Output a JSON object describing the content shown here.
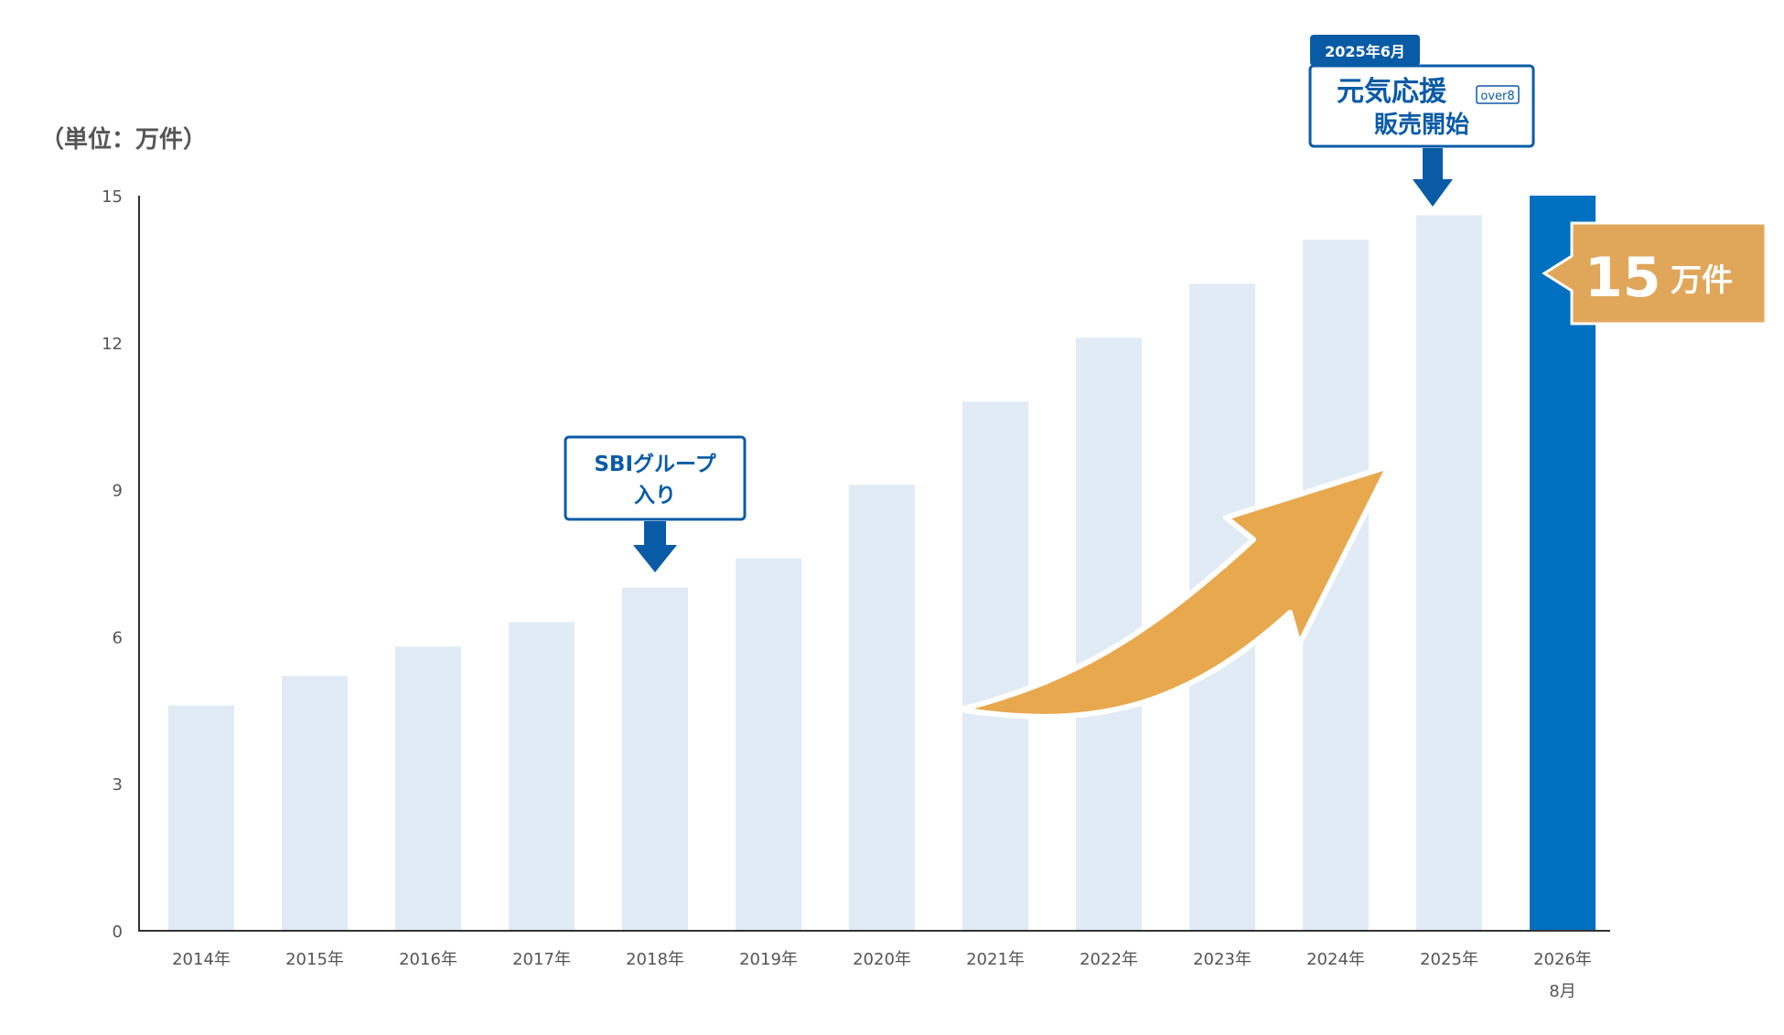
{
  "unit_label": "（単位：万件）",
  "chart_data": {
    "type": "bar",
    "categories": [
      "2014年",
      "2015年",
      "2016年",
      "2017年",
      "2018年",
      "2019年",
      "2020年",
      "2021年",
      "2022年",
      "2023年",
      "2024年",
      "2025年",
      "2026年"
    ],
    "category_sublabels": [
      "",
      "",
      "",
      "",
      "",
      "",
      "",
      "",
      "",
      "",
      "",
      "",
      "8月"
    ],
    "values": [
      4.6,
      5.2,
      5.8,
      6.3,
      7.0,
      7.6,
      9.1,
      10.8,
      12.1,
      13.2,
      14.1,
      14.6,
      15.0
    ],
    "highlight_index": 12,
    "ylim": [
      0,
      15
    ],
    "yticks": [
      0,
      3,
      6,
      9,
      12,
      15
    ],
    "grid": false,
    "colors": {
      "bar": "#e0ebf6",
      "highlight_bar": "#0070c0",
      "axis": "#333333",
      "tick_label": "#555555",
      "callout_border": "#0a5ba6",
      "callout_text": "#0a5ba6",
      "arrow": "#e8a84e",
      "badge": "#e0a75a"
    },
    "annotations": {
      "sbi": {
        "category_index": 4,
        "line1": "SBIグループ",
        "line2": "入り"
      },
      "genki": {
        "category_index": 11,
        "tag": "2025年6月",
        "line1_main": "元気応援",
        "line1_badge": "over8",
        "line2": "販売開始"
      },
      "total": {
        "category_index": 12,
        "number": "15",
        "unit": "万件"
      }
    },
    "trend_arrow": {
      "icon": "curved-up-arrow",
      "from_category": 7,
      "to_category": 11
    }
  }
}
